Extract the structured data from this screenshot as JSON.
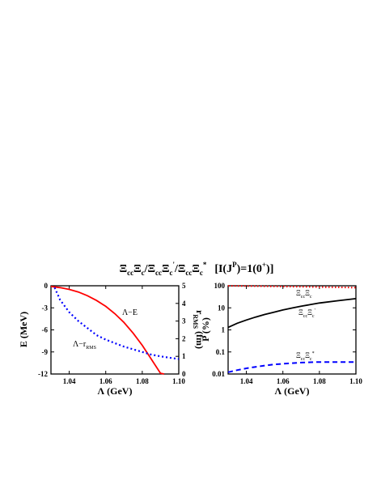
{
  "title": {
    "parts": [
      "Ξ",
      "cc",
      "Ξ",
      "c",
      "/",
      "Ξ",
      "cc",
      "Ξ",
      "c",
      "'",
      "/",
      "Ξ",
      "cc",
      "Ξ",
      "c",
      "*",
      "[I(J",
      "P",
      ")=1(0",
      "+",
      ")]"
    ]
  },
  "chart_data": [
    {
      "type": "line",
      "xlabel": "Λ (GeV)",
      "ylabel": "E (MeV)",
      "y2label_parts": [
        "r",
        "RMS",
        " (fm)"
      ],
      "xlim": [
        1.03,
        1.1
      ],
      "ylim": [
        -12,
        0
      ],
      "y2lim": [
        0,
        5
      ],
      "xticks": [
        "1.04",
        "1.06",
        "1.08",
        "1.10"
      ],
      "yticks": [
        "0",
        "-3",
        "-6",
        "-9",
        "-12"
      ],
      "y2ticks": [
        "0",
        "1",
        "2",
        "3",
        "4",
        "5"
      ],
      "series": [
        {
          "name": "Λ−E",
          "axis": "left",
          "color": "#ff0000",
          "style": "solid",
          "x": [
            1.03,
            1.035,
            1.04,
            1.045,
            1.05,
            1.055,
            1.06,
            1.065,
            1.07,
            1.075,
            1.08,
            1.085,
            1.09,
            1.092
          ],
          "y": [
            -0.1,
            -0.25,
            -0.5,
            -0.85,
            -1.35,
            -2.0,
            -2.8,
            -3.8,
            -5.0,
            -6.45,
            -8.1,
            -10.0,
            -11.9,
            -12.0
          ]
        },
        {
          "name": "Λ−r",
          "name_sub": "RMS",
          "axis": "right",
          "color": "#0000ff",
          "style": "dotted",
          "x": [
            1.032,
            1.035,
            1.04,
            1.045,
            1.05,
            1.055,
            1.06,
            1.065,
            1.07,
            1.075,
            1.08,
            1.085,
            1.09,
            1.095,
            1.1
          ],
          "y": [
            4.9,
            4.2,
            3.5,
            3.0,
            2.6,
            2.2,
            1.95,
            1.75,
            1.55,
            1.4,
            1.25,
            1.1,
            1.0,
            0.92,
            0.85
          ]
        }
      ]
    },
    {
      "type": "line",
      "xlabel": "Λ (GeV)",
      "ylabel": "P (%)",
      "scale": "log",
      "xlim": [
        1.03,
        1.1
      ],
      "ylim": [
        0.01,
        100
      ],
      "xticks": [
        "1.04",
        "1.06",
        "1.08",
        "1.10"
      ],
      "yticks": [
        "100",
        "10",
        "1",
        "0.1",
        "0.01"
      ],
      "series": [
        {
          "label_parts": [
            "Ξ",
            "cc",
            "Ξ",
            "c"
          ],
          "color": "#ff0000",
          "style": "dotted",
          "x": [
            1.03,
            1.04,
            1.05,
            1.06,
            1.07,
            1.08,
            1.09,
            1.1
          ],
          "y": [
            99.0,
            97.5,
            95.0,
            92.5,
            90.0,
            87.5,
            85.0,
            82.5
          ]
        },
        {
          "label_parts": [
            "Ξ",
            "cc",
            "Ξ",
            "c",
            "'"
          ],
          "color": "#000000",
          "style": "solid",
          "x": [
            1.03,
            1.035,
            1.04,
            1.045,
            1.05,
            1.055,
            1.06,
            1.065,
            1.07,
            1.075,
            1.08,
            1.09,
            1.1
          ],
          "y": [
            1.3,
            2.0,
            2.8,
            3.8,
            5.0,
            6.3,
            8.0,
            9.8,
            11.8,
            14.0,
            16.5,
            21.0,
            26.0
          ]
        },
        {
          "label_parts": [
            "Ξ",
            "cc",
            "Ξ",
            "c",
            "*"
          ],
          "color": "#0000ff",
          "style": "dashed",
          "x": [
            1.03,
            1.035,
            1.04,
            1.045,
            1.05,
            1.055,
            1.06,
            1.065,
            1.07,
            1.075,
            1.08,
            1.085,
            1.09,
            1.095,
            1.1
          ],
          "y": [
            0.012,
            0.015,
            0.018,
            0.021,
            0.024,
            0.027,
            0.029,
            0.031,
            0.033,
            0.034,
            0.035,
            0.035,
            0.035,
            0.035,
            0.035
          ]
        }
      ]
    }
  ]
}
